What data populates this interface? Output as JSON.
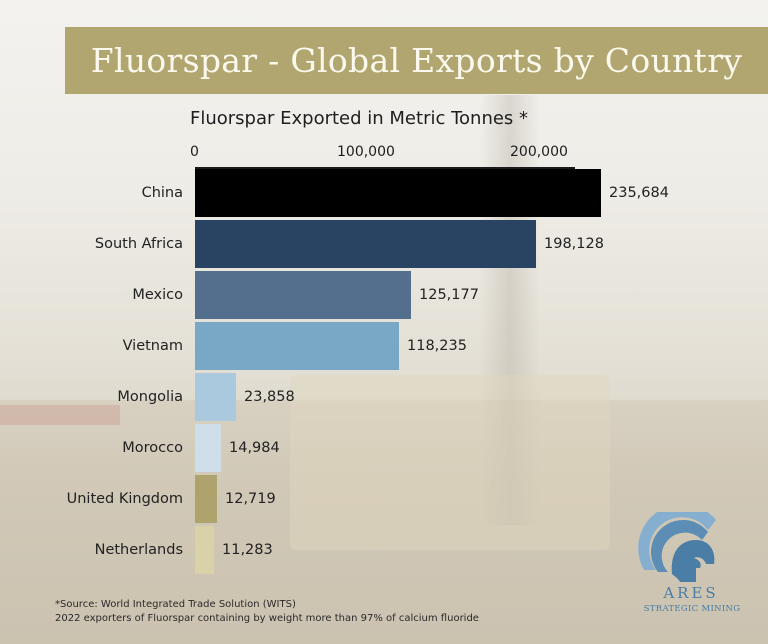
{
  "title": "Fluorspar - Global Exports by Country",
  "chart_title": "Fluorspar Exported in Metric Tonnes *",
  "axis_ticks": [
    "0",
    "100,000",
    "200,000"
  ],
  "bars": [
    {
      "label": "China",
      "value": 235684,
      "value_label": "235,684",
      "color": "#000000"
    },
    {
      "label": "South Africa",
      "value": 198128,
      "value_label": "198,128",
      "color": "#284462"
    },
    {
      "label": "Mexico",
      "value": 125177,
      "value_label": "125,177",
      "color": "#546f8e"
    },
    {
      "label": "Vietnam",
      "value": 118235,
      "value_label": "118,235",
      "color": "#79a8c6"
    },
    {
      "label": "Mongolia",
      "value": 23858,
      "value_label": "23,858",
      "color": "#abc9de"
    },
    {
      "label": "Morocco",
      "value": 14984,
      "value_label": "14,984",
      "color": "#cfdfea"
    },
    {
      "label": "United Kingdom",
      "value": 12719,
      "value_label": "12,719",
      "color": "#aea36c"
    },
    {
      "label": "Netherlands",
      "value": 11283,
      "value_label": "11,283",
      "color": "#d9d1a8"
    }
  ],
  "footnote": {
    "line1": "*Source: World Integrated Trade Solution (WITS)",
    "line2": "2022 exporters of Fluorspar containing by weight more than 97% of calcium fluoride"
  },
  "logo": {
    "name": "ARES",
    "subtitle": "STRATEGIC MINING",
    "color": "#4a7ea6"
  },
  "chart_data": {
    "type": "bar",
    "orientation": "horizontal",
    "title": "Fluorspar Exported in Metric Tonnes *",
    "categories": [
      "China",
      "South Africa",
      "Mexico",
      "Vietnam",
      "Mongolia",
      "Morocco",
      "United Kingdom",
      "Netherlands"
    ],
    "values": [
      235684,
      198128,
      125177,
      118235,
      23858,
      14984,
      12719,
      11283
    ],
    "xlabel": "Metric Tonnes",
    "ylabel": "",
    "xlim": [
      0,
      240000
    ],
    "x_ticks": [
      0,
      100000,
      200000
    ],
    "axis_position": "top",
    "grid": false,
    "data_labels": true
  }
}
